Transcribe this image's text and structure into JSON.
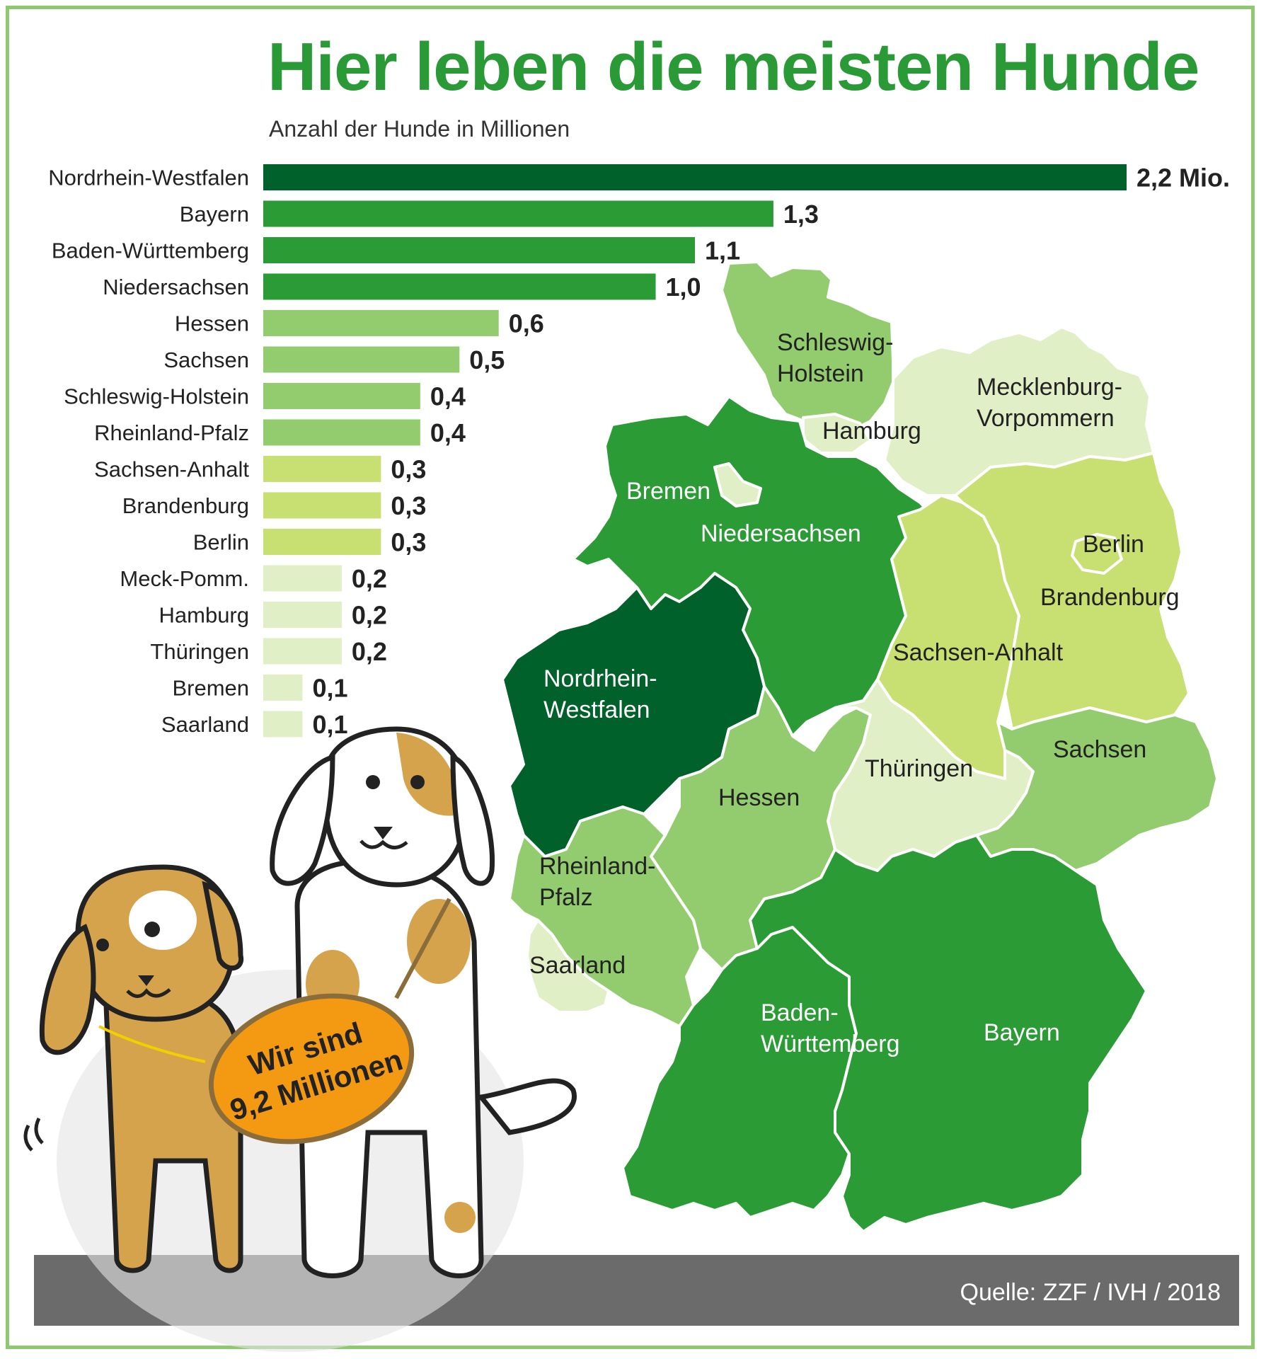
{
  "title": "Hier leben die meisten Hunde",
  "subtitle": "Anzahl der Hunde in Millionen",
  "source": "Quelle: ZZF / IVH / 2018",
  "badge": {
    "line1": "Wir sind",
    "line2": "9,2 Millionen"
  },
  "colors": {
    "title": "#2a9a37",
    "frame": "#8fc96f",
    "footer": "#6b6b6b",
    "badge": "#f39a12"
  },
  "chart_data": {
    "type": "bar",
    "orientation": "horizontal",
    "categories": [
      "Nordrhein-Westfalen",
      "Bayern",
      "Baden-Württemberg",
      "Niedersachsen",
      "Hessen",
      "Sachsen",
      "Schleswig-Holstein",
      "Rheinland-Pfalz",
      "Sachsen-Anhalt",
      "Brandenburg",
      "Berlin",
      "Meck-Pomm.",
      "Hamburg",
      "Thüringen",
      "Bremen",
      "Saarland"
    ],
    "values": [
      2.2,
      1.3,
      1.1,
      1.0,
      0.6,
      0.5,
      0.4,
      0.4,
      0.3,
      0.3,
      0.3,
      0.2,
      0.2,
      0.2,
      0.1,
      0.1
    ],
    "value_labels": [
      "2,2 Mio.",
      "1,3",
      "1,1",
      "1,0",
      "0,6",
      "0,5",
      "0,4",
      "0,4",
      "0,3",
      "0,3",
      "0,3",
      "0,2",
      "0,2",
      "0,2",
      "0,1",
      "0,1"
    ],
    "colors": [
      "#00612a",
      "#2b9b36",
      "#2b9b36",
      "#2b9b36",
      "#92cc6e",
      "#92cc6e",
      "#92cc6e",
      "#92cc6e",
      "#c8df72",
      "#c8df72",
      "#c8df72",
      "#e1efc6",
      "#e1efc6",
      "#e1efc6",
      "#e1efc6",
      "#e1efc6"
    ],
    "xlim": [
      0,
      2.2
    ]
  },
  "map": {
    "regions": [
      {
        "key": "sh",
        "label": [
          "Schleswig-",
          "Holstein"
        ],
        "color": "#92cc6e"
      },
      {
        "key": "mv",
        "label": [
          "Mecklenburg-",
          "Vorpommern"
        ],
        "color": "#e1efc6"
      },
      {
        "key": "hh",
        "label": [
          "Hamburg"
        ],
        "color": "#e1efc6"
      },
      {
        "key": "hb",
        "label": [
          "Bremen"
        ],
        "color": "#e1efc6"
      },
      {
        "key": "ni",
        "label": [
          "Niedersachsen"
        ],
        "color": "#2b9b36"
      },
      {
        "key": "st",
        "label": [
          "Sachsen-Anhalt"
        ],
        "color": "#c8df72"
      },
      {
        "key": "bb",
        "label": [
          "Brandenburg"
        ],
        "color": "#c8df72"
      },
      {
        "key": "be",
        "label": [
          "Berlin"
        ],
        "color": "#c8df72"
      },
      {
        "key": "nw",
        "label": [
          "Nordrhein-",
          "Westfalen"
        ],
        "color": "#00612a"
      },
      {
        "key": "he",
        "label": [
          "Hessen"
        ],
        "color": "#92cc6e"
      },
      {
        "key": "th",
        "label": [
          "Thüringen"
        ],
        "color": "#e1efc6"
      },
      {
        "key": "sn",
        "label": [
          "Sachsen"
        ],
        "color": "#92cc6e"
      },
      {
        "key": "rp",
        "label": [
          "Rheinland-",
          "Pfalz"
        ],
        "color": "#92cc6e"
      },
      {
        "key": "sl",
        "label": [
          "Saarland"
        ],
        "color": "#e1efc6"
      },
      {
        "key": "bw",
        "label": [
          "Baden-",
          "Württemberg"
        ],
        "color": "#2b9b36"
      },
      {
        "key": "by",
        "label": [
          "Bayern"
        ],
        "color": "#2b9b36"
      }
    ]
  }
}
